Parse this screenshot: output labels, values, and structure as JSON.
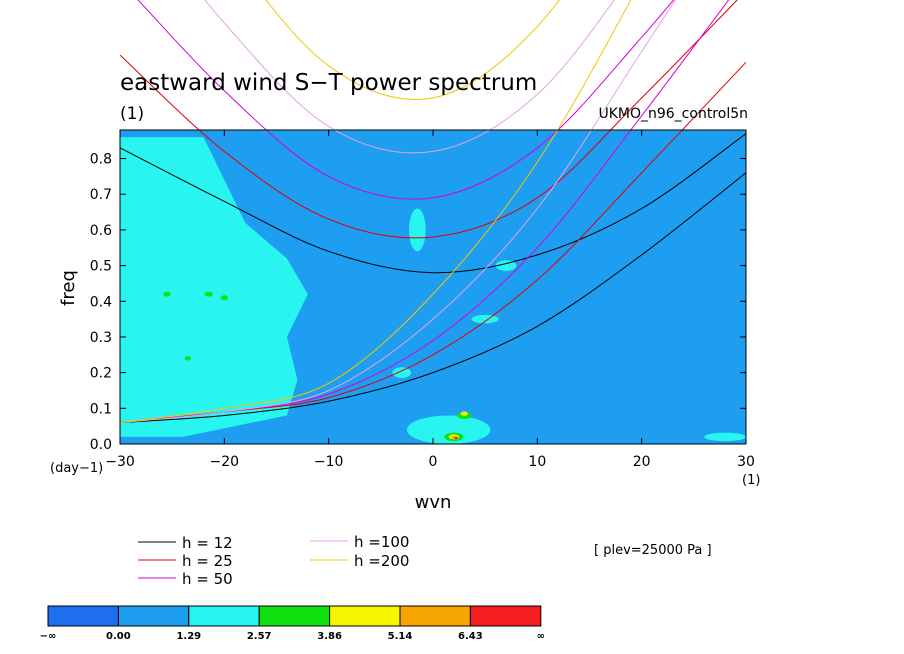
{
  "chart_data": {
    "type": "heatmap",
    "title": "eastward wind S−T power spectrum",
    "subtitle": "(1)",
    "model_label": "UKMO_n96_control5n",
    "xlabel": "wvn",
    "ylabel": "freq",
    "x_unit": "(1)",
    "y_unit": "(day−1)",
    "xlim": [
      -30,
      30
    ],
    "ylim": [
      0,
      0.88
    ],
    "x_ticks": [
      -30,
      -20,
      -10,
      0,
      10,
      20,
      30
    ],
    "x_tick_labels": [
      "−30",
      "−20",
      "−10",
      "0",
      "10",
      "20",
      "30"
    ],
    "y_ticks": [
      0.0,
      0.1,
      0.2,
      0.3,
      0.4,
      0.5,
      0.6,
      0.7,
      0.8
    ],
    "y_tick_labels": [
      "0.0",
      "0.1",
      "0.2",
      "0.3",
      "0.4",
      "0.5",
      "0.6",
      "0.7",
      "0.8"
    ],
    "note": "[ plev=25000 Pa ]",
    "colorbar": {
      "labels": [
        "−∞",
        "0.00",
        "1.29",
        "2.57",
        "3.86",
        "5.14",
        "6.43",
        "∞"
      ],
      "colors": [
        "#1e6ef0",
        "#1e9ef0",
        "#28f5f0",
        "#10e010",
        "#f5f500",
        "#f5a500",
        "#f51e1e"
      ]
    },
    "background_level_color": "#1e9ef0",
    "regions": [
      {
        "level": 2,
        "shape": "polygon",
        "points": [
          [
            -30,
            0.86
          ],
          [
            -22,
            0.86
          ],
          [
            -18,
            0.62
          ],
          [
            -14,
            0.52
          ],
          [
            -12,
            0.42
          ],
          [
            -14,
            0.3
          ],
          [
            -13,
            0.18
          ],
          [
            -14,
            0.08
          ],
          [
            -24,
            0.02
          ],
          [
            -30,
            0.02
          ]
        ]
      },
      {
        "level": 2,
        "shape": "ellipse",
        "cx": -1.5,
        "cy": 0.6,
        "rx": 0.8,
        "ry": 0.06
      },
      {
        "level": 2,
        "shape": "ellipse",
        "cx": 7,
        "cy": 0.5,
        "rx": 1.0,
        "ry": 0.015
      },
      {
        "level": 2,
        "shape": "ellipse",
        "cx": 5,
        "cy": 0.35,
        "rx": 1.3,
        "ry": 0.012
      },
      {
        "level": 2,
        "shape": "ellipse",
        "cx": 1.5,
        "cy": 0.04,
        "rx": 4.0,
        "ry": 0.04
      },
      {
        "level": 2,
        "shape": "ellipse",
        "cx": 28,
        "cy": 0.02,
        "rx": 2.0,
        "ry": 0.012
      },
      {
        "level": 2,
        "shape": "ellipse",
        "cx": -3,
        "cy": 0.2,
        "rx": 0.9,
        "ry": 0.015
      },
      {
        "level": 3,
        "shape": "ellipse",
        "cx": -25.5,
        "cy": 0.42,
        "rx": 0.35,
        "ry": 0.007
      },
      {
        "level": 3,
        "shape": "ellipse",
        "cx": -20,
        "cy": 0.41,
        "rx": 0.35,
        "ry": 0.007
      },
      {
        "level": 3,
        "shape": "ellipse",
        "cx": -21.5,
        "cy": 0.42,
        "rx": 0.4,
        "ry": 0.007
      },
      {
        "level": 3,
        "shape": "ellipse",
        "cx": -23.5,
        "cy": 0.24,
        "rx": 0.3,
        "ry": 0.006
      },
      {
        "level": 3,
        "shape": "ellipse",
        "cx": 3,
        "cy": 0.08,
        "rx": 0.7,
        "ry": 0.01
      },
      {
        "level": 3,
        "shape": "ellipse",
        "cx": 2,
        "cy": 0.02,
        "rx": 0.9,
        "ry": 0.012
      },
      {
        "level": 4,
        "shape": "ellipse",
        "cx": 3,
        "cy": 0.085,
        "rx": 0.35,
        "ry": 0.006
      },
      {
        "level": 4,
        "shape": "ellipse",
        "cx": 2,
        "cy": 0.02,
        "rx": 0.5,
        "ry": 0.007
      },
      {
        "level": 5,
        "shape": "ellipse",
        "cx": 2.1,
        "cy": 0.018,
        "rx": 0.3,
        "ry": 0.005
      },
      {
        "level": 6,
        "shape": "ellipse",
        "cx": 2.2,
        "cy": 0.017,
        "rx": 0.15,
        "ry": 0.003
      }
    ],
    "series": [
      {
        "name": "h = 12",
        "color": "#000000",
        "x": [
          -30,
          -20,
          -10,
          0,
          10,
          20,
          30
        ],
        "branches": [
          {
            "y": [
              0.83,
              0.68,
              0.54,
              0.48,
              0.53,
              0.66,
              0.87
            ]
          },
          {
            "y": [
              0.06,
              0.08,
              0.12,
              0.2,
              0.33,
              0.53,
              0.76
            ]
          }
        ]
      },
      {
        "name": "h = 25",
        "color": "#e00000",
        "x": [
          -30,
          -20,
          -10,
          0,
          10,
          20,
          30
        ],
        "branches": [
          {
            "y": [
              1.09,
              0.82,
              0.63,
              0.58,
              0.69,
              0.97,
              1.27
            ]
          },
          {
            "y": [
              0.06,
              0.09,
              0.13,
              0.25,
              0.46,
              0.76,
              1.07
            ]
          }
        ]
      },
      {
        "name": "h = 50",
        "color": "#d800d8",
        "x": [
          -30,
          -20,
          -10,
          0,
          10,
          20,
          30
        ],
        "branches": [
          {
            "y": [
              1.3,
              0.99,
              0.75,
              0.69,
              0.83,
              1.14,
              1.49
            ]
          },
          {
            "y": [
              0.06,
              0.09,
              0.14,
              0.29,
              0.55,
              0.92,
              1.31
            ]
          }
        ]
      },
      {
        "name": "h =100",
        "color": "#e8a0e8",
        "x": [
          -30,
          -20,
          -10,
          0,
          10,
          20,
          30
        ],
        "branches": [
          {
            "y": [
              1.55,
              1.18,
              0.89,
              0.82,
              0.98,
              1.35,
              1.76
            ]
          },
          {
            "y": [
              0.06,
              0.09,
              0.15,
              0.35,
              0.66,
              1.1,
              1.55
            ]
          }
        ]
      },
      {
        "name": "h =200",
        "color": "#f0c800",
        "x": [
          -30,
          -20,
          -10,
          0,
          10,
          20,
          30
        ],
        "branches": [
          {
            "y": [
              1.85,
              1.4,
              1.06,
              0.97,
              1.17,
              1.6,
              2.1
            ]
          },
          {
            "y": [
              0.06,
              0.1,
              0.17,
              0.42,
              0.79,
              1.3,
              1.85
            ]
          }
        ]
      }
    ]
  }
}
